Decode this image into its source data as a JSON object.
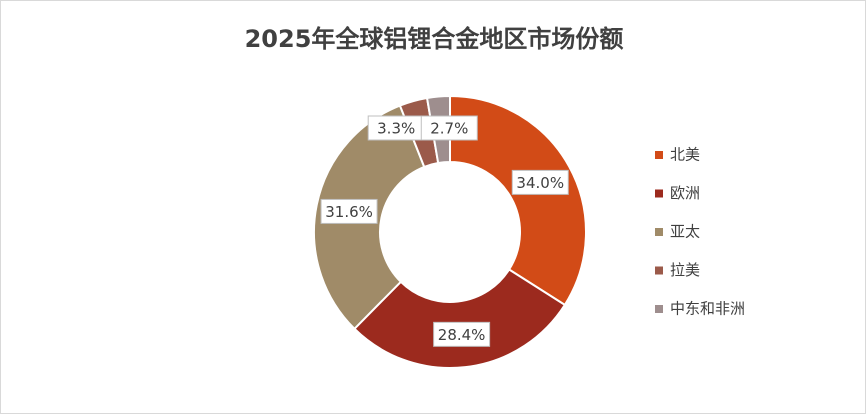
{
  "chart_data": {
    "type": "donut",
    "title": "2025年全球铝锂合金地区市场份额",
    "categories": [
      "北美",
      "欧洲",
      "亚太",
      "拉美",
      "中东和非洲"
    ],
    "values": [
      34.0,
      28.4,
      31.6,
      3.3,
      2.7
    ],
    "value_labels": [
      "34.0%",
      "28.4%",
      "31.6%",
      "3.3%",
      "2.7%"
    ],
    "colors": [
      "#d24b17",
      "#9c2a1e",
      "#a08b68",
      "#9b5a4a",
      "#9e8e8e"
    ],
    "legend": "right"
  }
}
